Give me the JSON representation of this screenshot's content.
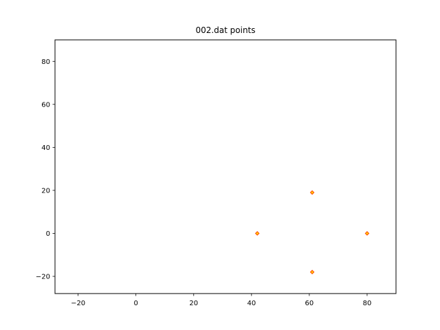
{
  "chart_data": {
    "type": "scatter",
    "title": "002.dat points",
    "xlabel": "",
    "ylabel": "",
    "xlim": [
      -28,
      90
    ],
    "ylim": [
      -28,
      90
    ],
    "xticks": [
      -20,
      0,
      20,
      40,
      60,
      80
    ],
    "yticks": [
      -20,
      0,
      20,
      40,
      60,
      80
    ],
    "grid": false,
    "series": [
      {
        "marker": "diamond",
        "edge_color": "#ff4500",
        "face_color": "#ffd700",
        "points": [
          {
            "x": 42,
            "y": 0
          },
          {
            "x": 61,
            "y": 19
          },
          {
            "x": 80,
            "y": 0
          },
          {
            "x": 61,
            "y": -18
          }
        ]
      }
    ]
  }
}
